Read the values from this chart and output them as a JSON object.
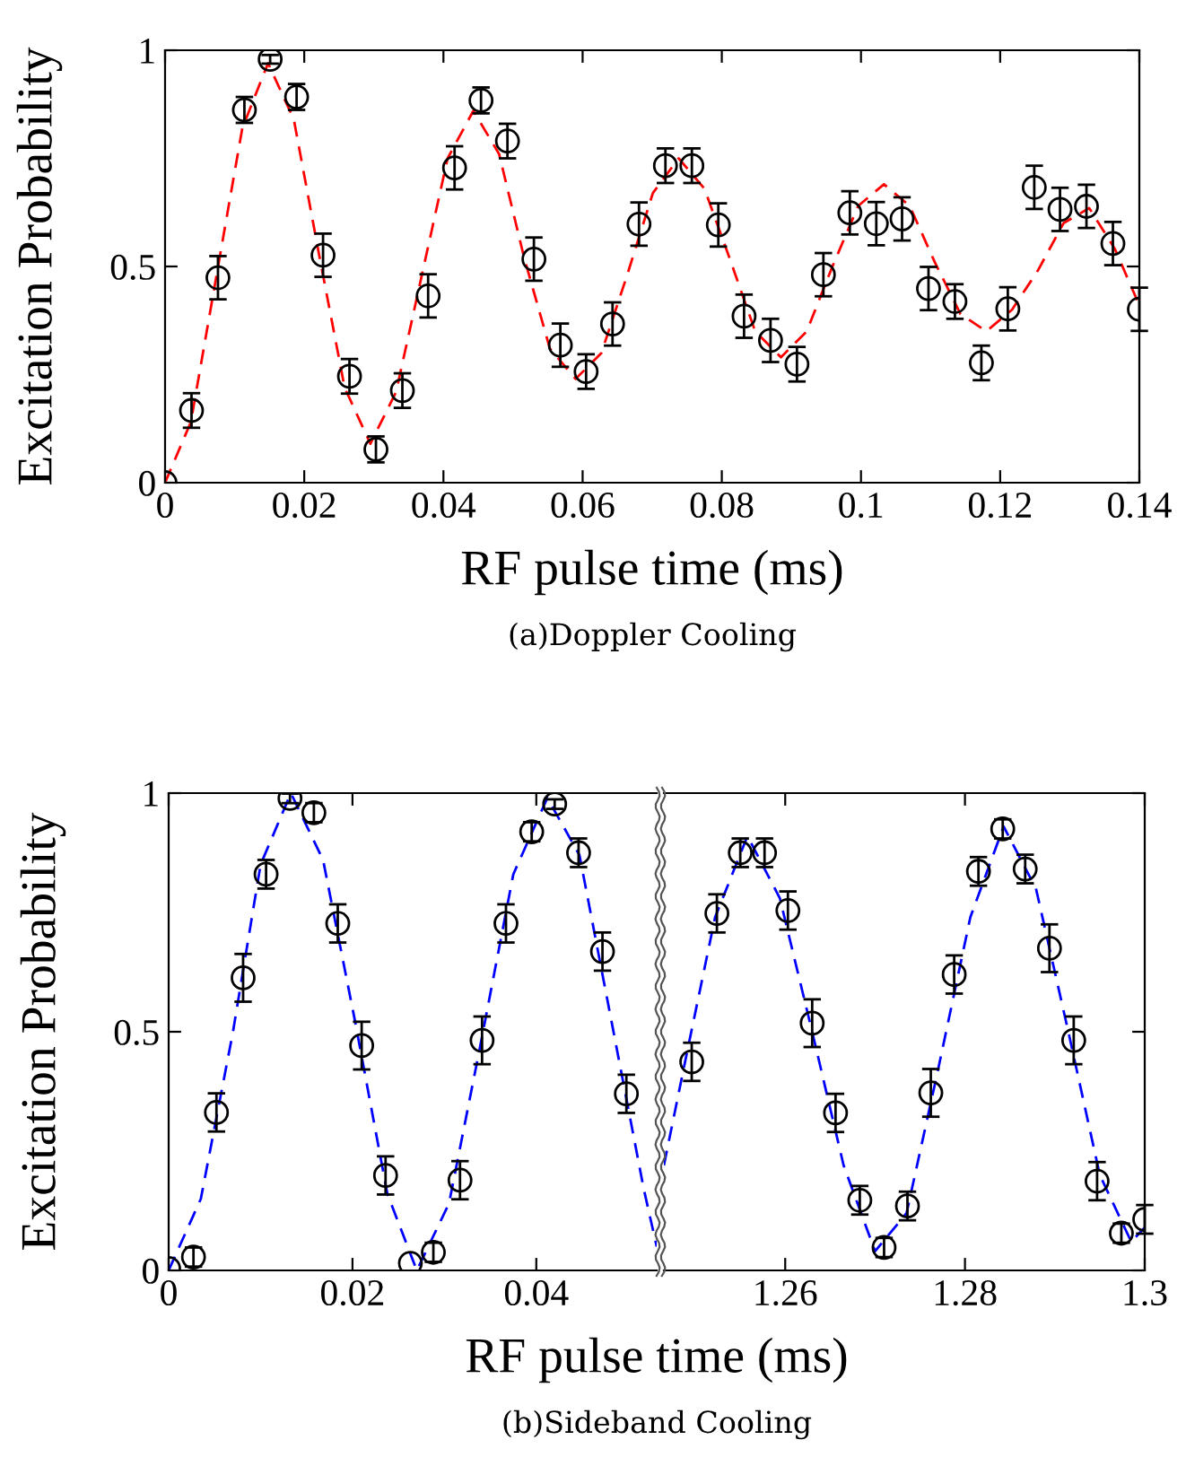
{
  "chart_data": [
    {
      "type": "scatter",
      "xlabel": "RF pulse time (ms)",
      "ylabel": "Excitation Probability",
      "annotations": [
        "(a)Doppler Cooling"
      ],
      "xlim": [
        0,
        0.14
      ],
      "ylim": [
        0,
        1
      ],
      "xticks": [
        0,
        0.02,
        0.04,
        0.06,
        0.08,
        0.1,
        0.12,
        0.14
      ],
      "yticks": [
        0,
        0.5,
        1
      ],
      "series": [
        {
          "color": "#000000",
          "marker": "circle",
          "x": [
            0,
            0.0038,
            0.0076,
            0.0114,
            0.0151,
            0.0189,
            0.0227,
            0.0265,
            0.0303,
            0.0341,
            0.0378,
            0.0416,
            0.0454,
            0.0492,
            0.053,
            0.0568,
            0.0605,
            0.0643,
            0.0681,
            0.0719,
            0.0757,
            0.0795,
            0.0832,
            0.087,
            0.0908,
            0.0946,
            0.0984,
            0.1022,
            0.1059,
            0.1097,
            0.1135,
            0.1173,
            0.1211,
            0.1249,
            0.1286,
            0.1324,
            0.1362,
            0.14
          ],
          "values": [
            0.0,
            0.167,
            0.474,
            0.862,
            0.979,
            0.892,
            0.526,
            0.246,
            0.077,
            0.213,
            0.432,
            0.728,
            0.884,
            0.79,
            0.517,
            0.318,
            0.257,
            0.367,
            0.598,
            0.733,
            0.733,
            0.596,
            0.385,
            0.329,
            0.274,
            0.481,
            0.624,
            0.599,
            0.61,
            0.449,
            0.419,
            0.277,
            0.402,
            0.683,
            0.632,
            0.639,
            0.553,
            0.401
          ],
          "errors": [
            null,
            0.04,
            0.05,
            0.03,
            0.01,
            0.03,
            0.05,
            0.04,
            0.03,
            0.04,
            0.05,
            0.05,
            0.03,
            0.04,
            0.05,
            0.05,
            0.04,
            0.05,
            0.05,
            0.04,
            0.04,
            0.05,
            0.05,
            0.05,
            0.04,
            0.05,
            0.05,
            0.05,
            0.05,
            0.05,
            0.04,
            0.04,
            0.05,
            0.05,
            0.05,
            0.05,
            0.05,
            0.05
          ]
        },
        {
          "type": "line",
          "color": "#ff0000",
          "marker": "none",
          "line_style": "dashed",
          "x": [
            0,
            0.0037,
            0.0074,
            0.0111,
            0.0148,
            0.0185,
            0.0221,
            0.0258,
            0.0295,
            0.0332,
            0.0369,
            0.0406,
            0.0443,
            0.048,
            0.0516,
            0.0553,
            0.059,
            0.0627,
            0.0664,
            0.0701,
            0.0738,
            0.0775,
            0.0811,
            0.0848,
            0.0885,
            0.0922,
            0.0959,
            0.0996,
            0.1033,
            0.107,
            0.1106,
            0.1143,
            0.118,
            0.1217,
            0.1254,
            0.1291,
            0.1328,
            0.1365,
            0.14
          ],
          "values": [
            0.0,
            0.14,
            0.48,
            0.82,
            0.97,
            0.84,
            0.53,
            0.22,
            0.09,
            0.21,
            0.48,
            0.75,
            0.86,
            0.76,
            0.52,
            0.31,
            0.24,
            0.3,
            0.48,
            0.67,
            0.75,
            0.68,
            0.52,
            0.35,
            0.29,
            0.35,
            0.5,
            0.64,
            0.69,
            0.64,
            0.51,
            0.39,
            0.35,
            0.4,
            0.49,
            0.6,
            0.635,
            0.54,
            0.41
          ]
        }
      ]
    },
    {
      "type": "scatter",
      "xlabel": "RF pulse time (ms)",
      "ylabel": "Excitation Probability",
      "annotations": [
        "(b)Sideband Cooling"
      ],
      "xlim": [
        0,
        0.0531
      ],
      "ylim": [
        0,
        1
      ],
      "xticks": [
        0,
        0.02,
        0.04
      ],
      "yticks": [
        0,
        0.5,
        1
      ],
      "series": [
        {
          "color": "#000000",
          "marker": "circle",
          "x": [
            0,
            0.0027,
            0.0052,
            0.0081,
            0.0106,
            0.0132,
            0.0158,
            0.0184,
            0.021,
            0.0236,
            0.0263,
            0.0288,
            0.0317,
            0.0341,
            0.0367,
            0.0395,
            0.042,
            0.0446,
            0.0472,
            0.0498
          ],
          "values": [
            0.004,
            0.028,
            0.331,
            0.613,
            0.83,
            0.989,
            0.959,
            0.727,
            0.471,
            0.199,
            0.015,
            0.038,
            0.189,
            0.482,
            0.727,
            0.919,
            0.977,
            0.875,
            0.668,
            0.37
          ],
          "errors": [
            null,
            0.02,
            0.04,
            0.05,
            0.03,
            0.01,
            0.02,
            0.04,
            0.05,
            0.04,
            null,
            0.02,
            0.04,
            0.05,
            0.04,
            0.02,
            0.01,
            0.03,
            0.04,
            0.04
          ]
        },
        {
          "type": "line",
          "color": "#0000ff",
          "marker": "none",
          "line_style": "dashed",
          "x": [
            0,
            0.0035,
            0.007,
            0.01,
            0.0133,
            0.0168,
            0.0203,
            0.0238,
            0.027,
            0.0305,
            0.034,
            0.0375,
            0.0412,
            0.0447,
            0.0482,
            0.0517,
            0.0531
          ],
          "values": [
            0.0,
            0.15,
            0.5,
            0.85,
            1.0,
            0.86,
            0.52,
            0.16,
            0.0,
            0.14,
            0.48,
            0.83,
            0.99,
            0.87,
            0.52,
            0.17,
            0.05
          ]
        }
      ]
    },
    {
      "type": "scatter",
      "tick_labels": "x",
      "xlim": [
        1.2465,
        1.3
      ],
      "ylim": [
        0,
        1
      ],
      "xticks": [
        1.26,
        1.28,
        1.3
      ],
      "yticks": [
        0,
        0.5,
        1
      ],
      "series": [
        {
          "color": "#000000",
          "marker": "circle",
          "x": [
            1.2496,
            1.2524,
            1.255,
            1.2577,
            1.2603,
            1.263,
            1.2656,
            1.2683,
            1.271,
            1.2736,
            1.2762,
            1.2788,
            1.2815,
            1.2842,
            1.2867,
            1.2894,
            1.2921,
            1.2947,
            1.2974,
            1.3
          ],
          "values": [
            0.437,
            0.748,
            0.875,
            0.875,
            0.754,
            0.518,
            0.33,
            0.147,
            0.048,
            0.135,
            0.372,
            0.62,
            0.836,
            0.925,
            0.841,
            0.675,
            0.482,
            0.187,
            0.078,
            0.107
          ],
          "errors": [
            0.04,
            0.04,
            0.03,
            0.03,
            0.04,
            0.05,
            0.04,
            0.03,
            0.02,
            0.03,
            0.05,
            0.04,
            0.03,
            0.02,
            0.03,
            0.05,
            0.05,
            0.04,
            0.02,
            0.03
          ]
        },
        {
          "type": "line",
          "color": "#0000ff",
          "marker": "none",
          "line_style": "dashed",
          "x": [
            1.2465,
            1.249,
            1.2522,
            1.2558,
            1.2594,
            1.263,
            1.2665,
            1.27,
            1.2735,
            1.277,
            1.2806,
            1.2843,
            1.2879,
            1.2915,
            1.295,
            1.2985,
            1.3
          ],
          "values": [
            0.22,
            0.45,
            0.74,
            0.91,
            0.78,
            0.5,
            0.22,
            0.04,
            0.12,
            0.42,
            0.74,
            0.93,
            0.8,
            0.5,
            0.2,
            0.06,
            0.09
          ]
        }
      ]
    }
  ]
}
